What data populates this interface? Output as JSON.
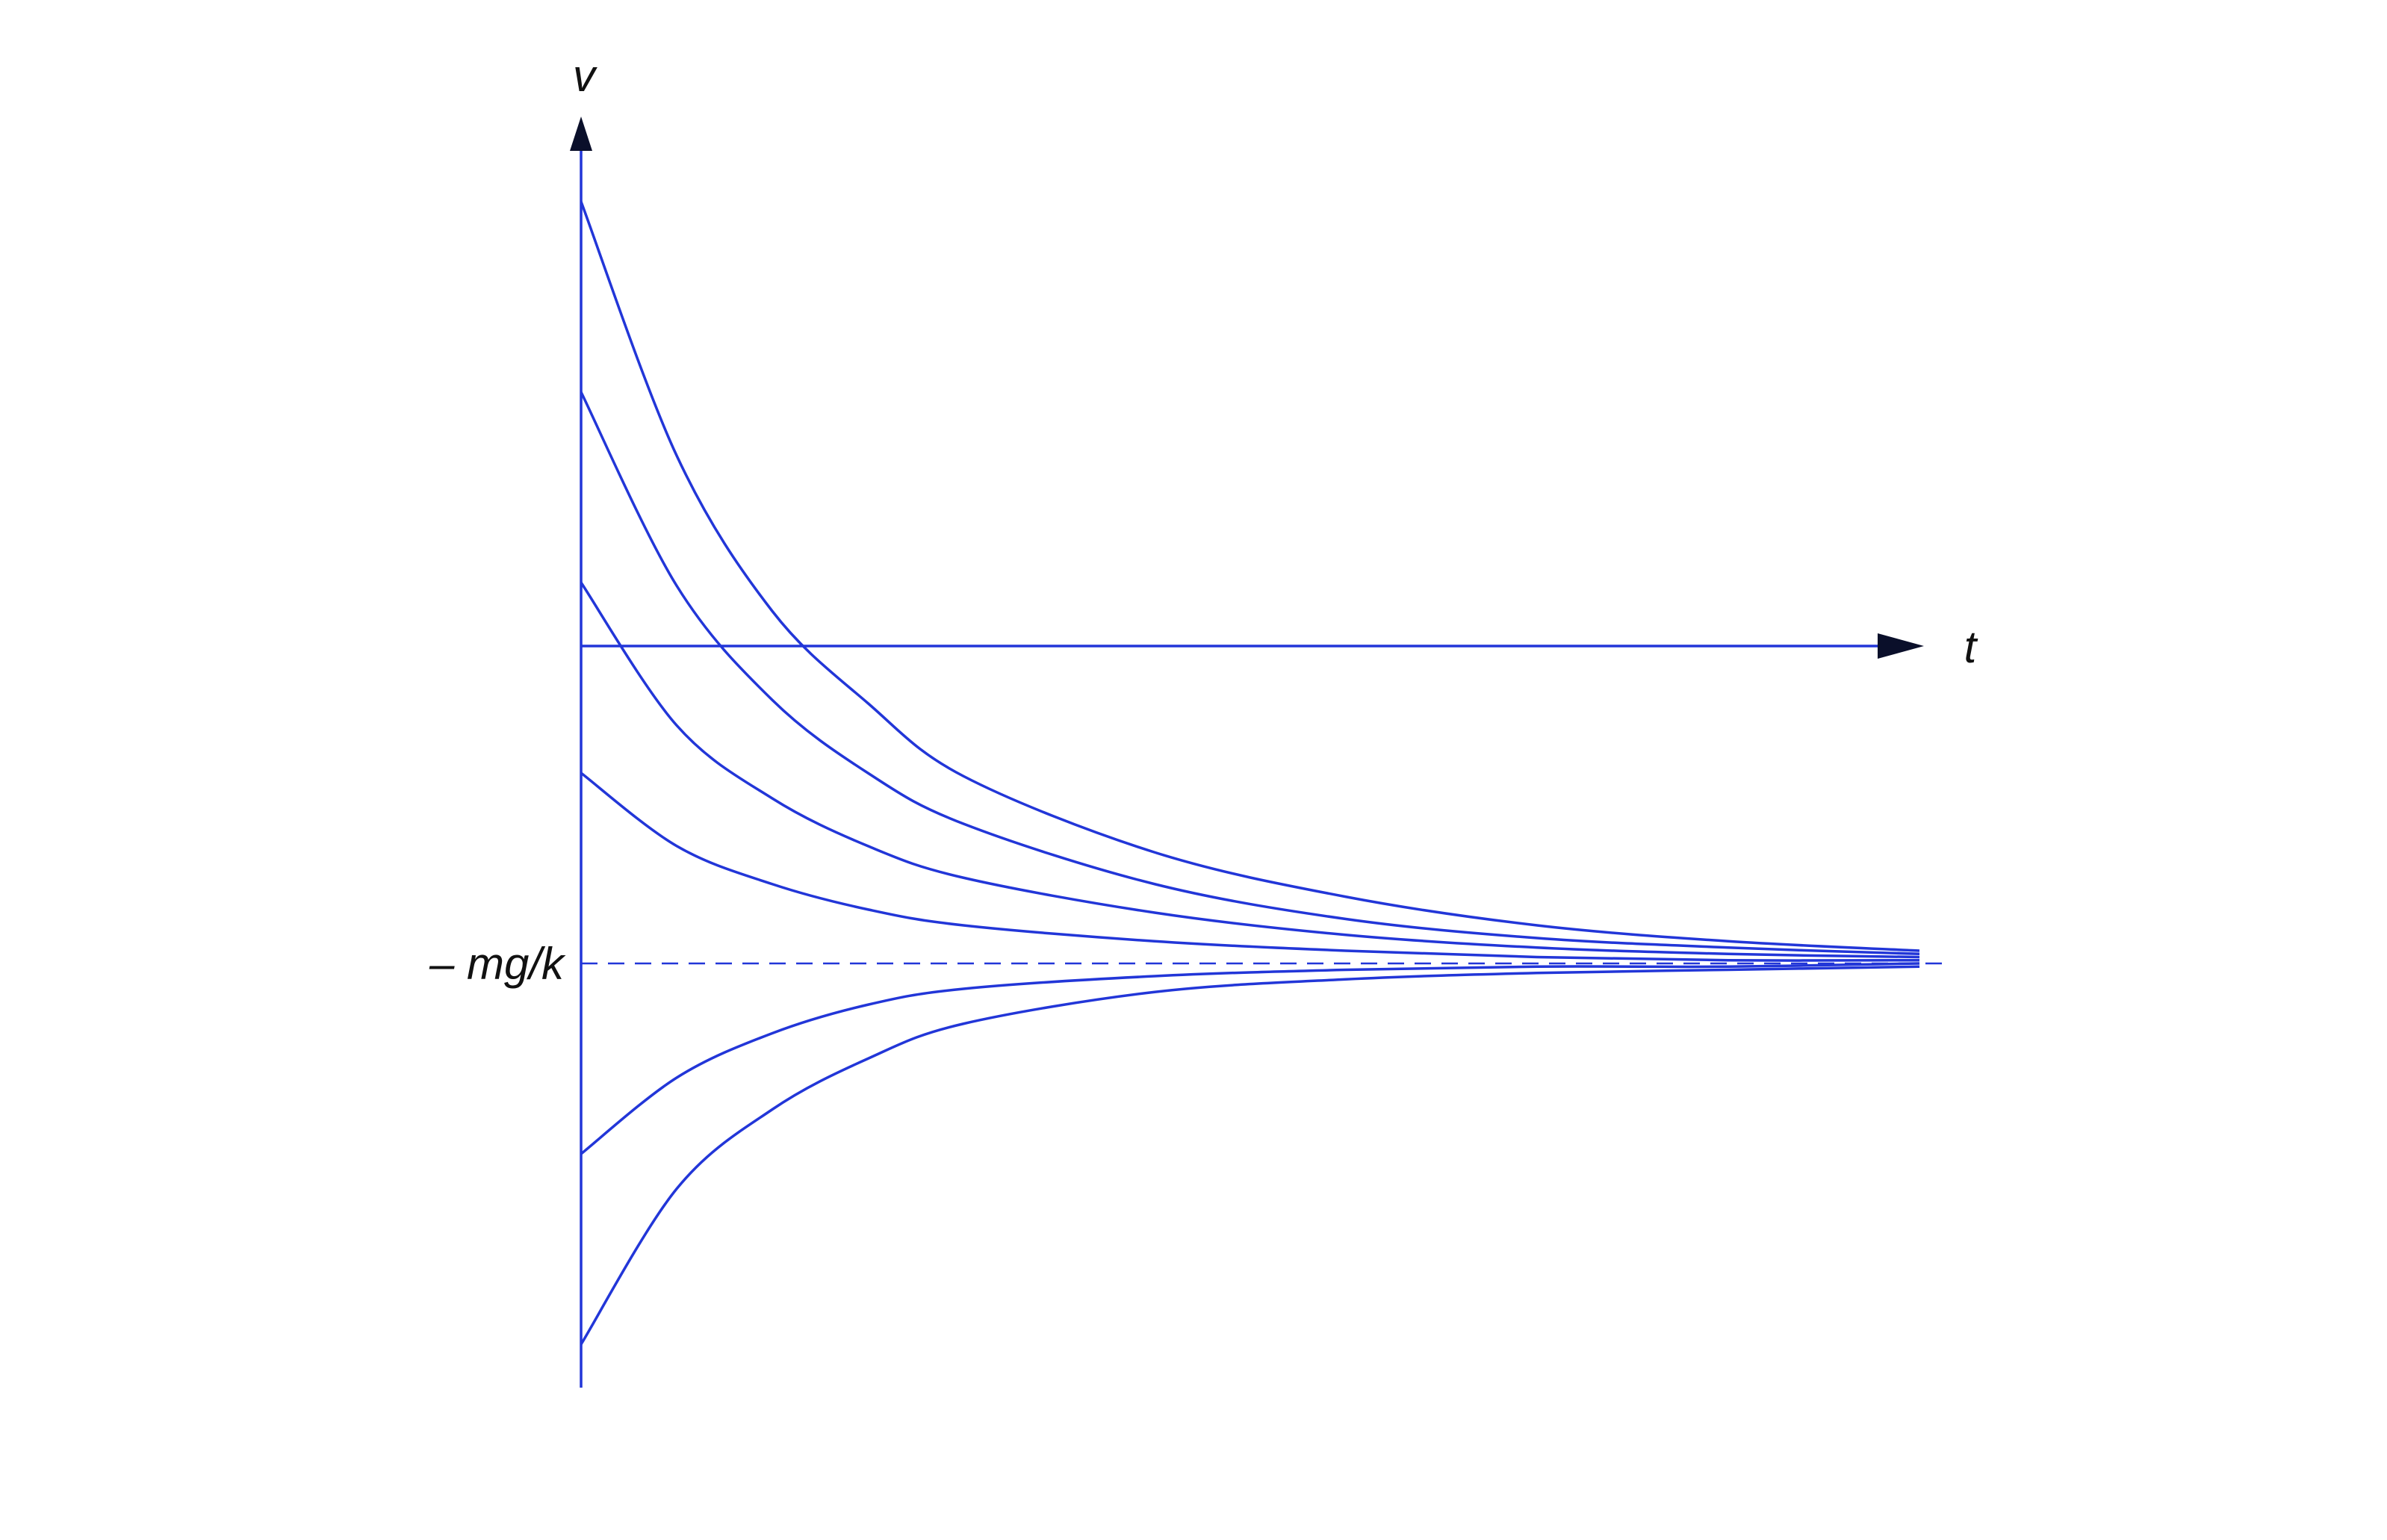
{
  "chart_data": {
    "type": "line",
    "title": "",
    "xlabel": "t",
    "ylabel": "v",
    "terminal_label": "– mg/k",
    "terminal_value": -1.0,
    "xlim": [
      0,
      7
    ],
    "ylim": [
      -2.25,
      1.3
    ],
    "grid": false,
    "legend": "none",
    "line_color": "#2236d8",
    "axis_color": "#2236d8",
    "arrow_color": "#0a0f2a",
    "series": [
      {
        "t": [
          0,
          0.5,
          1,
          1.5,
          2,
          3,
          4,
          5,
          6,
          7
        ],
        "values": [
          1.4,
          0.6,
          0.11,
          -0.18,
          -0.41,
          -0.65,
          -0.79,
          -0.88,
          -0.93,
          -0.96
        ]
      },
      {
        "t": [
          0,
          0.5,
          1,
          1.5,
          2,
          3,
          4,
          5,
          6,
          7
        ],
        "values": [
          0.8,
          0.19,
          -0.17,
          -0.4,
          -0.56,
          -0.75,
          -0.86,
          -0.92,
          -0.95,
          -0.97
        ]
      },
      {
        "t": [
          0,
          0.5,
          1,
          1.5,
          2,
          3,
          4,
          5,
          6,
          7
        ],
        "values": [
          0.2,
          -0.25,
          -0.48,
          -0.63,
          -0.73,
          -0.84,
          -0.91,
          -0.95,
          -0.97,
          -0.98
        ]
      },
      {
        "t": [
          0,
          0.5,
          1,
          1.5,
          2,
          3,
          4,
          5,
          6,
          7
        ],
        "values": [
          -0.4,
          -0.63,
          -0.75,
          -0.83,
          -0.88,
          -0.93,
          -0.96,
          -0.98,
          -0.99,
          -0.99
        ]
      },
      {
        "t": [
          0,
          0.5,
          1,
          1.5,
          2,
          3,
          4,
          5,
          6,
          7
        ],
        "values": [
          -1.6,
          -1.36,
          -1.22,
          -1.13,
          -1.08,
          -1.04,
          -1.02,
          -1.01,
          -1.01,
          -1.0
        ]
      },
      {
        "t": [
          0,
          0.5,
          1,
          1.5,
          2,
          3,
          4,
          5,
          6,
          7
        ],
        "values": [
          -2.2,
          -1.71,
          -1.46,
          -1.3,
          -1.19,
          -1.09,
          -1.05,
          -1.03,
          -1.02,
          -1.01
        ]
      }
    ]
  }
}
